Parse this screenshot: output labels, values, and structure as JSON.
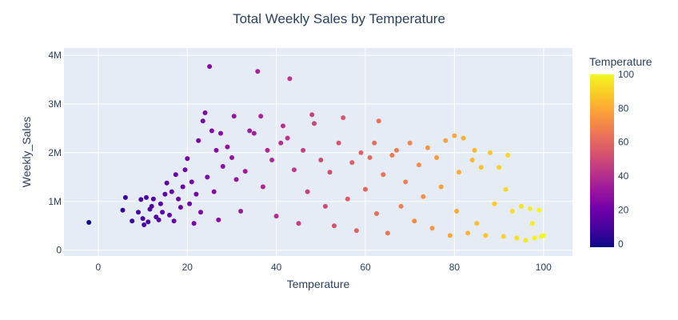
{
  "chart_data": {
    "type": "scatter",
    "title": "Total Weekly Sales by Temperature",
    "xlabel": "Temperature",
    "ylabel": "Weekly_Sales",
    "xlim": [
      -7.7,
      106.5
    ],
    "ylim": [
      -0.12,
      4.15
    ],
    "y_unit": "M",
    "x_ticks": [
      "0",
      "20",
      "40",
      "60",
      "80",
      "100"
    ],
    "x_tick_values": [
      0,
      20,
      40,
      60,
      80,
      100
    ],
    "y_ticks": [
      "0",
      "1M",
      "2M",
      "3M",
      "4M"
    ],
    "y_tick_values": [
      0,
      1,
      2,
      3,
      4
    ],
    "grid": true,
    "colorbar": {
      "title": "Temperature",
      "range": [
        -2,
        100
      ],
      "ticks": [
        "0",
        "20",
        "40",
        "60",
        "80",
        "100"
      ],
      "tick_values": [
        0,
        20,
        40,
        60,
        80,
        100
      ],
      "colorscale": [
        "#0d0887",
        "#46039f",
        "#7201a8",
        "#9c179e",
        "#bd3786",
        "#d8576b",
        "#ed7953",
        "#fb9f3a",
        "#fdca26",
        "#f0f921"
      ]
    },
    "points": [
      [
        -2.1,
        0.57
      ],
      [
        5.5,
        0.82
      ],
      [
        6.1,
        1.08
      ],
      [
        7.6,
        0.6
      ],
      [
        9.0,
        0.78
      ],
      [
        9.6,
        1.04
      ],
      [
        10.0,
        0.65
      ],
      [
        10.3,
        0.52
      ],
      [
        10.8,
        1.08
      ],
      [
        11.2,
        0.58
      ],
      [
        11.6,
        0.84
      ],
      [
        12.0,
        0.9
      ],
      [
        12.4,
        1.05
      ],
      [
        13.0,
        0.68
      ],
      [
        13.6,
        0.62
      ],
      [
        14.0,
        0.95
      ],
      [
        14.4,
        0.78
      ],
      [
        15.0,
        1.15
      ],
      [
        15.4,
        1.38
      ],
      [
        16.0,
        0.72
      ],
      [
        16.5,
        1.2
      ],
      [
        17.0,
        0.6
      ],
      [
        17.4,
        1.55
      ],
      [
        18.0,
        1.05
      ],
      [
        18.5,
        0.88
      ],
      [
        19.0,
        1.3
      ],
      [
        19.5,
        1.65
      ],
      [
        20.0,
        1.88
      ],
      [
        20.5,
        0.95
      ],
      [
        21.0,
        1.4
      ],
      [
        21.5,
        0.55
      ],
      [
        22.0,
        1.15
      ],
      [
        22.5,
        2.25
      ],
      [
        23.0,
        0.78
      ],
      [
        23.5,
        2.65
      ],
      [
        24.0,
        2.82
      ],
      [
        24.5,
        1.5
      ],
      [
        25.0,
        3.77
      ],
      [
        25.5,
        2.45
      ],
      [
        26.0,
        1.2
      ],
      [
        26.5,
        2.05
      ],
      [
        27.0,
        0.62
      ],
      [
        27.5,
        2.4
      ],
      [
        28.0,
        1.72
      ],
      [
        29.0,
        2.12
      ],
      [
        30.0,
        1.9
      ],
      [
        30.5,
        2.75
      ],
      [
        31.0,
        1.45
      ],
      [
        32.0,
        0.8
      ],
      [
        33.0,
        1.62
      ],
      [
        34.0,
        2.45
      ],
      [
        35.0,
        2.4
      ],
      [
        35.8,
        3.67
      ],
      [
        36.5,
        2.75
      ],
      [
        37.0,
        1.3
      ],
      [
        38.0,
        2.05
      ],
      [
        39.0,
        1.85
      ],
      [
        40.0,
        0.7
      ],
      [
        41.0,
        2.2
      ],
      [
        41.5,
        2.55
      ],
      [
        42.5,
        2.3
      ],
      [
        43.0,
        3.52
      ],
      [
        44.0,
        1.65
      ],
      [
        45.0,
        0.55
      ],
      [
        46.0,
        2.05
      ],
      [
        47.0,
        1.2
      ],
      [
        48.0,
        2.78
      ],
      [
        48.5,
        2.6
      ],
      [
        50.0,
        1.85
      ],
      [
        51.0,
        0.9
      ],
      [
        52.0,
        1.6
      ],
      [
        53.0,
        0.5
      ],
      [
        54.0,
        2.2
      ],
      [
        55.0,
        2.72
      ],
      [
        56.0,
        1.05
      ],
      [
        57.0,
        1.8
      ],
      [
        58.0,
        0.4
      ],
      [
        59.0,
        2.0
      ],
      [
        60.0,
        1.25
      ],
      [
        61.0,
        1.9
      ],
      [
        62.0,
        2.2
      ],
      [
        62.5,
        0.75
      ],
      [
        63.0,
        2.65
      ],
      [
        64.0,
        1.55
      ],
      [
        65.0,
        0.35
      ],
      [
        66.0,
        1.95
      ],
      [
        67.0,
        2.05
      ],
      [
        68.0,
        0.9
      ],
      [
        69.0,
        1.4
      ],
      [
        70.0,
        2.2
      ],
      [
        71.0,
        0.6
      ],
      [
        72.0,
        1.75
      ],
      [
        73.0,
        1.1
      ],
      [
        74.0,
        2.1
      ],
      [
        75.0,
        0.45
      ],
      [
        76.0,
        1.9
      ],
      [
        77.0,
        1.3
      ],
      [
        78.0,
        2.25
      ],
      [
        79.0,
        0.3
      ],
      [
        80.0,
        2.35
      ],
      [
        80.5,
        0.8
      ],
      [
        81.0,
        1.6
      ],
      [
        82.0,
        2.3
      ],
      [
        83.0,
        0.35
      ],
      [
        84.0,
        1.85
      ],
      [
        84.5,
        2.05
      ],
      [
        85.0,
        0.55
      ],
      [
        86.0,
        1.7
      ],
      [
        87.0,
        0.3
      ],
      [
        88.0,
        2.0
      ],
      [
        89.0,
        0.95
      ],
      [
        90.0,
        1.7
      ],
      [
        91.0,
        0.28
      ],
      [
        91.5,
        1.25
      ],
      [
        92.0,
        1.95
      ],
      [
        93.0,
        0.8
      ],
      [
        94.0,
        0.25
      ],
      [
        95.0,
        0.9
      ],
      [
        96.0,
        0.2
      ],
      [
        97.0,
        0.85
      ],
      [
        97.5,
        0.55
      ],
      [
        98.0,
        0.25
      ],
      [
        99.0,
        0.82
      ],
      [
        99.5,
        0.28
      ],
      [
        100.0,
        0.3
      ]
    ]
  }
}
